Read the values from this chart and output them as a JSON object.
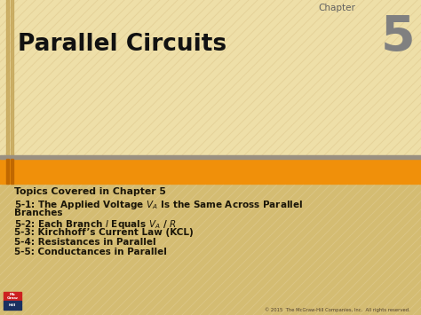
{
  "bg_upper_color": "#eedfa8",
  "bg_lower_color": "#d4bc72",
  "orange_bar_color": "#f0900a",
  "gray_bar_color": "#9a9080",
  "chapter_label": "Chapter",
  "chapter_number": "5",
  "title": "Parallel Circuits",
  "title_color": "#111111",
  "topics_header": "Topics Covered in Chapter 5",
  "text_color": "#1a1508",
  "footer_text": "© 2015  The McGraw-Hill Companies, Inc.  All rights reserved.",
  "logo_red": "#cc2020",
  "logo_blue": "#1a3060",
  "chapter_color": "#606060",
  "number_color": "#808080",
  "stripe_color": "#e0ca90",
  "left_accent_color": "#c0a050",
  "orange_accent_color": "#c06800"
}
